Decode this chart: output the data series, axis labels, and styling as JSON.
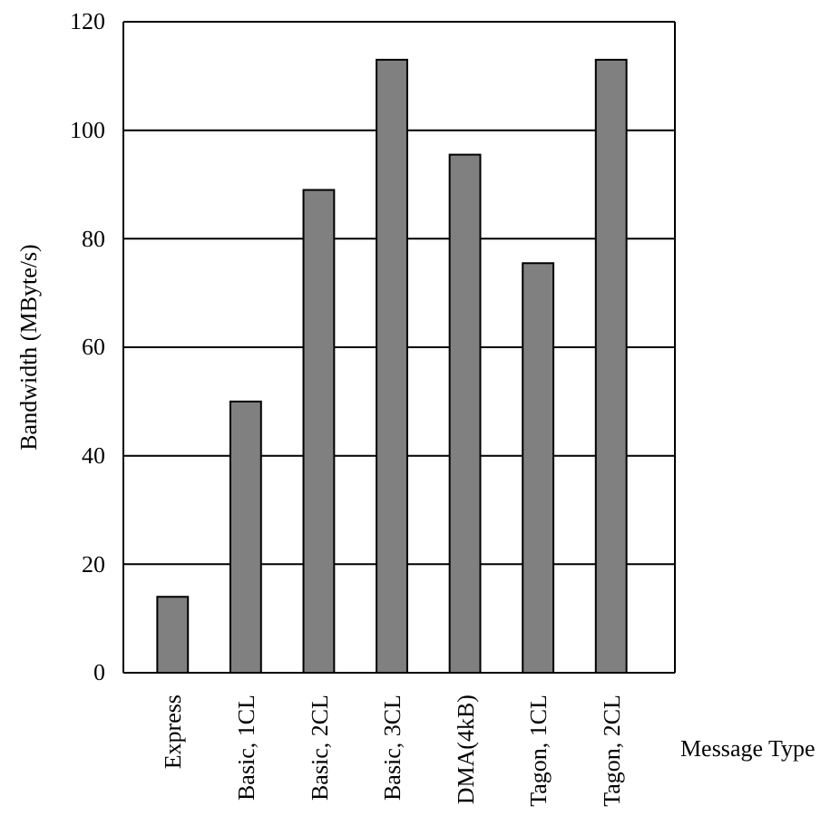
{
  "chart_data": {
    "type": "bar",
    "xlabel": "Message Type",
    "ylabel": "Bandwidth (MByte/s)",
    "categories": [
      "Express",
      "Basic, 1CL",
      "Basic, 2CL",
      "Basic, 3CL",
      "DMA(4kB)",
      "Tagon, 1CL",
      "Tagon, 2CL"
    ],
    "values": [
      14,
      50,
      89,
      113,
      95.5,
      75.5,
      113
    ],
    "color": "#808080",
    "ylim": [
      0,
      120
    ],
    "yticks": [
      0,
      20,
      40,
      60,
      80,
      100,
      120
    ],
    "grid": "y"
  }
}
